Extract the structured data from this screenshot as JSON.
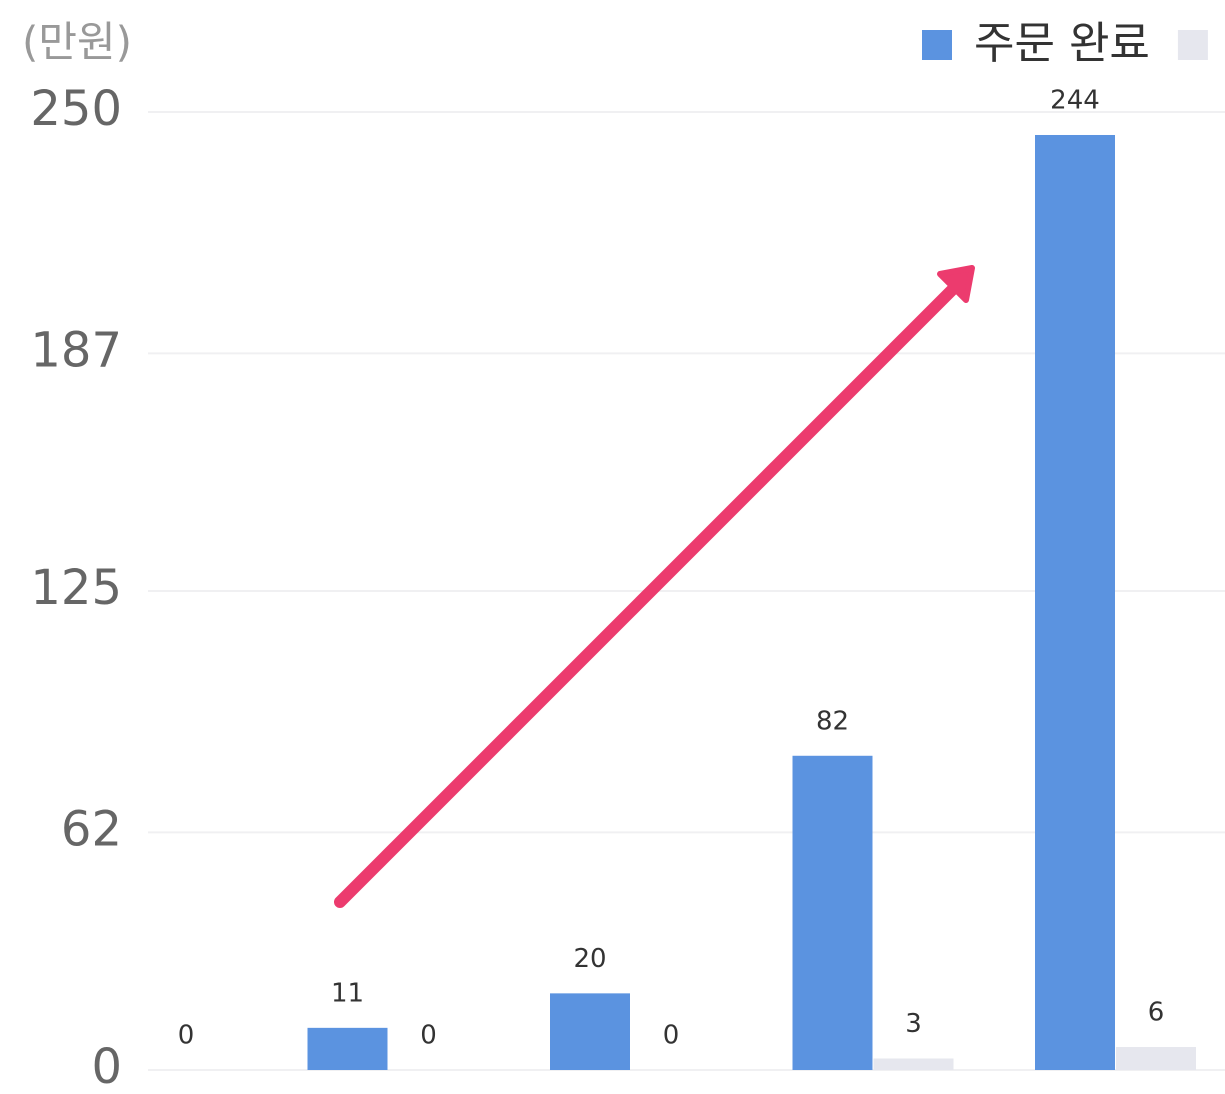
{
  "chart_data": {
    "type": "bar",
    "y_label": "(만원)",
    "categories": [
      null,
      null,
      null,
      null,
      null
    ],
    "series": [
      {
        "name": "주문 완료",
        "color": "#5b93e0",
        "values": [
          null,
          11,
          20,
          82,
          244
        ]
      },
      {
        "color": "#e6e7ee",
        "values": [
          0,
          0,
          0,
          3,
          6
        ]
      }
    ],
    "ylim": [
      0,
      250
    ],
    "yticks": [
      0,
      62,
      125,
      187,
      250
    ],
    "grid": true,
    "legend": "top-right"
  }
}
